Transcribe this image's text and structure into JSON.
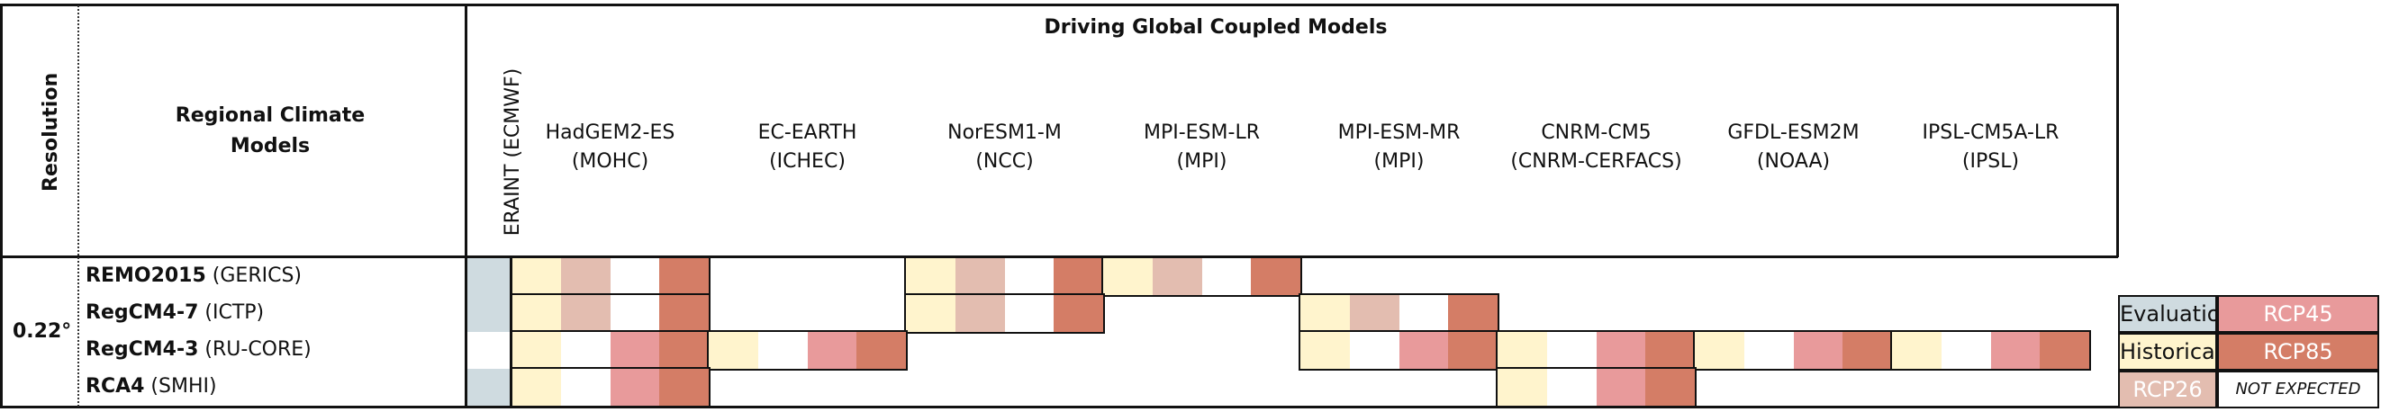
{
  "header": {
    "resolution_label": "Resolution",
    "rcm_label_line1": "Regional Climate",
    "rcm_label_line2": "Models",
    "driving_title": "Driving Global Coupled Models",
    "eraint_label": "ERAINT (ECMWF)"
  },
  "gcms": [
    {
      "name": "HadGEM2-ES",
      "institute": "(MOHC)"
    },
    {
      "name": "EC-EARTH",
      "institute": "(ICHEC)"
    },
    {
      "name": "NorESM1-M",
      "institute": "(NCC)"
    },
    {
      "name": "MPI-ESM-LR",
      "institute": "(MPI)"
    },
    {
      "name": "MPI-ESM-MR",
      "institute": "(MPI)"
    },
    {
      "name": "CNRM-CM5",
      "institute": "(CNRM-CERFACS)"
    },
    {
      "name": "GFDL-ESM2M",
      "institute": "(NOAA)"
    },
    {
      "name": "IPSL-CM5A-LR",
      "institute": "(IPSL)"
    }
  ],
  "resolution_value": "0.22°",
  "rcms": [
    {
      "name": "REMO2015",
      "institute": "(GERICS)"
    },
    {
      "name": "RegCM4-7",
      "institute": "(ICTP)"
    },
    {
      "name": "RegCM4-3",
      "institute": "(RU-CORE)"
    },
    {
      "name": "RCA4",
      "institute": "(SMHI)"
    }
  ],
  "colors": {
    "evaluation": "#cfdbe0",
    "historical": "#fff4cd",
    "rcp26": "#e3bdb0",
    "rcp45": "#e89a9b",
    "rcp85": "#d47d66",
    "not_expected": "#ffffff"
  },
  "matrix": {
    "experiments": [
      "Historical",
      "RCP26",
      "RCP45",
      "RCP85"
    ],
    "rows": [
      {
        "eval": true,
        "gcm": [
          [
            "hist",
            "rcp26",
            "",
            "rcp85"
          ],
          null,
          [
            "hist",
            "rcp26",
            "",
            "rcp85"
          ],
          [
            "hist",
            "rcp26",
            "",
            "rcp85"
          ],
          null,
          null,
          null,
          null
        ]
      },
      {
        "eval": true,
        "gcm": [
          [
            "hist",
            "rcp26",
            "",
            "rcp85"
          ],
          null,
          [
            "hist",
            "rcp26",
            "",
            "rcp85"
          ],
          null,
          [
            "hist",
            "rcp26",
            "",
            "rcp85"
          ],
          null,
          null,
          null
        ]
      },
      {
        "eval": false,
        "gcm": [
          [
            "hist",
            "",
            "rcp45",
            "rcp85"
          ],
          [
            "hist",
            "",
            "rcp45",
            "rcp85"
          ],
          null,
          null,
          [
            "hist",
            "",
            "rcp45",
            "rcp85"
          ],
          [
            "hist",
            "",
            "rcp45",
            "rcp85"
          ],
          [
            "hist",
            "",
            "rcp45",
            "rcp85"
          ],
          [
            "hist",
            "",
            "rcp45",
            "rcp85"
          ]
        ]
      },
      {
        "eval": true,
        "gcm": [
          [
            "hist",
            "",
            "rcp45",
            "rcp85"
          ],
          null,
          null,
          null,
          null,
          [
            "hist",
            "",
            "rcp45",
            "rcp85"
          ],
          null,
          null
        ]
      }
    ]
  },
  "legend": {
    "evaluation": "Evaluation",
    "rcp45": "RCP45",
    "historical": "Historical",
    "rcp85": "RCP85",
    "rcp26": "RCP26",
    "not_expected": "NOT EXPECTED"
  }
}
